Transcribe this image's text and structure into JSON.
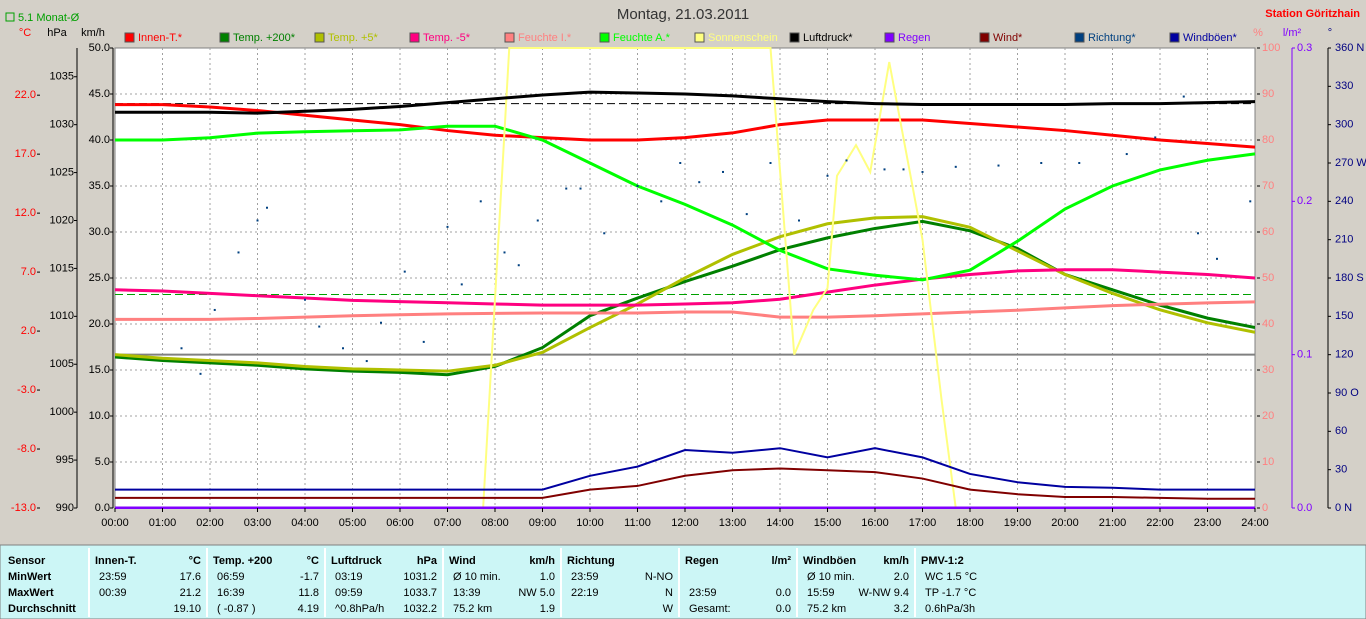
{
  "chart_data": {
    "type": "line",
    "title": "Montag, 21.03.2011",
    "station": "Station Göritzhain",
    "monthly_label": "5.1 Monat-Ø",
    "x": [
      0,
      1,
      2,
      3,
      4,
      5,
      6,
      7,
      8,
      9,
      10,
      11,
      12,
      13,
      14,
      15,
      16,
      17,
      18,
      19,
      20,
      21,
      22,
      23,
      24
    ],
    "xlim": [
      0,
      24
    ],
    "xticks": [
      {
        "value": 0,
        "label": "00:00"
      },
      {
        "value": 1,
        "label": "01:00"
      },
      {
        "value": 2,
        "label": "02:00"
      },
      {
        "value": 3,
        "label": "03:00"
      },
      {
        "value": 4,
        "label": "04:00"
      },
      {
        "value": 5,
        "label": "05:00"
      },
      {
        "value": 6,
        "label": "06:00"
      },
      {
        "value": 7,
        "label": "07:00"
      },
      {
        "value": 8,
        "label": "08:00"
      },
      {
        "value": 9,
        "label": "09:00"
      },
      {
        "value": 10,
        "label": "10:00"
      },
      {
        "value": 11,
        "label": "11:00"
      },
      {
        "value": 12,
        "label": "12:00"
      },
      {
        "value": 13,
        "label": "13:00"
      },
      {
        "value": 14,
        "label": "14:00"
      },
      {
        "value": 15,
        "label": "15:00"
      },
      {
        "value": 16,
        "label": "16:00"
      },
      {
        "value": 17,
        "label": "17:00"
      },
      {
        "value": 18,
        "label": "18:00"
      },
      {
        "value": 19,
        "label": "19:00"
      },
      {
        "value": 20,
        "label": "20:00"
      },
      {
        "value": 21,
        "label": "21:00"
      },
      {
        "value": 22,
        "label": "22:00"
      },
      {
        "value": 23,
        "label": "23:00"
      },
      {
        "value": 24,
        "label": "24:00"
      }
    ],
    "grid": true,
    "axes": [
      {
        "id": "c",
        "unit": "°C",
        "color": "#ff0000",
        "ylim": [
          -13,
          26
        ],
        "yticks": [
          {
            "value": -13,
            "label": "-13.0"
          },
          {
            "value": -8,
            "label": "-8.0"
          },
          {
            "value": -3,
            "label": "-3.0"
          },
          {
            "value": 2,
            "label": "2.0"
          },
          {
            "value": 7,
            "label": "7.0"
          },
          {
            "value": 12,
            "label": "12.0"
          },
          {
            "value": 17,
            "label": "17.0"
          },
          {
            "value": 22,
            "label": "22.0"
          }
        ]
      },
      {
        "id": "hpa",
        "unit": "hPa",
        "color": "#000000",
        "ylim": [
          990,
          1038
        ],
        "yticks": [
          990,
          995,
          1000,
          1005,
          1010,
          1015,
          1020,
          1025,
          1030,
          1035
        ]
      },
      {
        "id": "kmh",
        "unit": "km/h",
        "color": "#000000",
        "ylim": [
          0,
          50
        ],
        "yticks": [
          {
            "value": 0,
            "label": "0.0"
          },
          {
            "value": 5,
            "label": "5.0"
          },
          {
            "value": 10,
            "label": "10.0"
          },
          {
            "value": 15,
            "label": "15.0"
          },
          {
            "value": 20,
            "label": "20.0"
          },
          {
            "value": 25,
            "label": "25.0"
          },
          {
            "value": 30,
            "label": "30.0"
          },
          {
            "value": 35,
            "label": "35.0"
          },
          {
            "value": 40,
            "label": "40.0"
          },
          {
            "value": 45,
            "label": "45.0"
          },
          {
            "value": 50,
            "label": "50.0"
          }
        ]
      },
      {
        "id": "pct",
        "unit": "%",
        "color": "#ff8080",
        "ylim": [
          0,
          100
        ],
        "yticks": [
          0,
          10,
          20,
          30,
          40,
          50,
          60,
          70,
          80,
          90,
          100
        ]
      },
      {
        "id": "rain",
        "unit": "l/m²",
        "color": "#8000ff",
        "ylim": [
          0,
          0.3
        ],
        "yticks": [
          {
            "value": 0,
            "label": "0.0"
          },
          {
            "value": 0.1,
            "label": "0.1"
          },
          {
            "value": 0.2,
            "label": "0.2"
          },
          {
            "value": 0.3,
            "label": "0.3"
          }
        ]
      },
      {
        "id": "deg",
        "unit": "°",
        "color": "#000080",
        "ylim": [
          0,
          360
        ],
        "yticks": [
          {
            "value": 0,
            "label": "0 N"
          },
          30,
          60,
          {
            "value": 90,
            "label": "90 O"
          },
          120,
          150,
          {
            "value": 180,
            "label": "180 S"
          },
          210,
          240,
          {
            "value": 270,
            "label": "270 W"
          },
          300,
          330,
          {
            "value": 360,
            "label": "360 N"
          }
        ]
      }
    ],
    "reference_lines": [
      {
        "axis": "c",
        "value": 5.1,
        "color": "#00a000",
        "dash": true
      },
      {
        "axis": "hpa",
        "value": 1032.2,
        "color": "#000000",
        "dash": true
      },
      {
        "axis": "c",
        "value": 0,
        "color": "#808080",
        "dash": false
      }
    ],
    "series": [
      {
        "name": "Innen-T.*",
        "color": "#ff0000",
        "axis": "c",
        "type": "line",
        "values": [
          21.2,
          21.2,
          21.0,
          20.7,
          20.3,
          19.9,
          19.5,
          19.0,
          18.6,
          18.4,
          18.2,
          18.2,
          18.4,
          18.8,
          19.5,
          19.9,
          19.9,
          19.9,
          19.6,
          19.3,
          19.0,
          18.6,
          18.2,
          17.9,
          17.6
        ]
      },
      {
        "name": "Temp. +200*",
        "color": "#008000",
        "axis": "c",
        "type": "line",
        "values": [
          -0.2,
          -0.5,
          -0.7,
          -0.9,
          -1.2,
          -1.4,
          -1.5,
          -1.7,
          -1.0,
          0.6,
          3.3,
          4.8,
          6.2,
          7.5,
          8.9,
          9.9,
          10.7,
          11.3,
          10.5,
          9.0,
          6.8,
          5.5,
          4.2,
          3.1,
          2.3
        ]
      },
      {
        "name": "Temp. +5*",
        "color": "#b0c000",
        "axis": "c",
        "type": "line",
        "values": [
          0.0,
          -0.3,
          -0.5,
          -0.7,
          -1.0,
          -1.2,
          -1.3,
          -1.4,
          -0.9,
          0.2,
          2.3,
          4.3,
          6.5,
          8.5,
          10.0,
          11.1,
          11.6,
          11.7,
          10.8,
          8.8,
          6.8,
          5.2,
          3.8,
          2.7,
          1.9
        ]
      },
      {
        "name": "Temp. -5*",
        "color": "#ff0080",
        "axis": "c",
        "type": "line",
        "values": [
          5.5,
          5.4,
          5.2,
          5.0,
          4.8,
          4.6,
          4.5,
          4.4,
          4.3,
          4.2,
          4.2,
          4.2,
          4.3,
          4.4,
          4.7,
          5.3,
          5.9,
          6.4,
          6.8,
          7.1,
          7.2,
          7.2,
          7.0,
          6.8,
          6.5
        ]
      },
      {
        "name": "Feuchte I.*",
        "color": "#ff8080",
        "axis": "pct",
        "type": "line",
        "values": [
          41,
          41,
          41,
          41.2,
          41.5,
          41.8,
          42,
          42.2,
          42.3,
          42.4,
          42.4,
          42.4,
          42.6,
          42.6,
          41.5,
          41.5,
          41.8,
          42.2,
          42.6,
          43,
          43.5,
          44,
          44.3,
          44.6,
          44.8
        ]
      },
      {
        "name": "Feuchte A.*",
        "color": "#00ff00",
        "axis": "pct",
        "type": "line",
        "values": [
          80,
          80,
          80.5,
          81.5,
          81.8,
          82,
          82.2,
          83,
          83,
          80,
          75,
          70,
          66,
          61.5,
          56,
          52,
          50.6,
          49.6,
          51.7,
          58,
          65,
          70,
          73.5,
          75.6,
          77
        ]
      },
      {
        "name": "Sonnenschein",
        "color": "#ffff80",
        "axis": "deg",
        "type": "line",
        "x": [
          0,
          7.75,
          8.3,
          13.8,
          14.3,
          14.7,
          15.0,
          15.2,
          15.6,
          15.9,
          16.3,
          17.0,
          17.4,
          17.7,
          24
        ],
        "values": [
          0,
          0,
          360,
          360,
          120,
          155,
          172,
          260,
          284,
          263,
          349,
          210,
          85,
          0,
          0
        ]
      },
      {
        "name": "Luftdruck*",
        "color": "#000000",
        "axis": "hpa",
        "type": "line",
        "values": [
          1031.3,
          1031.3,
          1031.3,
          1031.2,
          1031.4,
          1031.6,
          1031.9,
          1032.3,
          1032.7,
          1033.1,
          1033.4,
          1033.3,
          1033.2,
          1033.0,
          1032.7,
          1032.4,
          1032.2,
          1032.1,
          1032.1,
          1032.1,
          1032.1,
          1032.2,
          1032.2,
          1032.3,
          1032.4
        ]
      },
      {
        "name": "Regen",
        "color": "#8000ff",
        "axis": "rain",
        "type": "line",
        "values": [
          0,
          0,
          0,
          0,
          0,
          0,
          0,
          0,
          0,
          0,
          0,
          0,
          0,
          0,
          0,
          0,
          0,
          0,
          0,
          0,
          0,
          0,
          0,
          0,
          0
        ]
      },
      {
        "name": "Wind*",
        "color": "#800000",
        "axis": "kmh",
        "type": "line",
        "values": [
          1.1,
          1.1,
          1.1,
          1.1,
          1.1,
          1.1,
          1.1,
          1.1,
          1.1,
          1.1,
          2.0,
          2.4,
          3.5,
          4.1,
          4.3,
          4.1,
          3.9,
          3.2,
          2.0,
          1.5,
          1.2,
          1.2,
          1.1,
          1.0,
          1.0
        ]
      },
      {
        "name": "Richtung*",
        "color": "#004080",
        "axis": "deg",
        "type": "scatter",
        "x": [
          1.4,
          1.8,
          2.1,
          2.6,
          3.0,
          3.2,
          4.0,
          4.3,
          4.8,
          5.3,
          5.6,
          6.1,
          6.5,
          7.0,
          7.3,
          7.7,
          8.2,
          8.5,
          8.9,
          9.5,
          9.8,
          10.3,
          11.0,
          11.5,
          11.9,
          12.3,
          12.8,
          13.3,
          13.8,
          14.4,
          15.0,
          15.4,
          16.2,
          16.6,
          17.0,
          17.7,
          18.6,
          19.5,
          20.3,
          21.3,
          21.9,
          22.5,
          22.8,
          23.2,
          23.9
        ],
        "values": [
          125,
          105,
          155,
          200,
          225,
          235,
          163,
          142,
          125,
          115,
          145,
          185,
          130,
          220,
          175,
          240,
          200,
          190,
          225,
          250,
          250,
          215,
          252,
          240,
          270,
          255,
          263,
          230,
          270,
          225,
          260,
          272,
          265,
          265,
          263,
          267,
          268,
          270,
          270,
          277,
          290,
          322,
          215,
          195,
          240
        ]
      },
      {
        "name": "Windböen*",
        "color": "#0000a0",
        "axis": "kmh",
        "type": "line",
        "values": [
          2.0,
          2.0,
          2.0,
          2.0,
          2.0,
          2.0,
          2.0,
          2.0,
          2.0,
          2.0,
          3.5,
          4.5,
          6.3,
          6.0,
          6.5,
          5.5,
          6.5,
          5.5,
          3.7,
          2.8,
          2.3,
          2.2,
          2.0,
          2.0,
          2.0
        ]
      }
    ]
  },
  "table": {
    "sensor_column": [
      "Sensor",
      "MinWert",
      "MaxWert",
      "Durchschnitt"
    ],
    "groups": [
      {
        "name": "Innen-T.",
        "unit": "°C",
        "rows": [
          {
            "left": "23:59",
            "right": "17.6"
          },
          {
            "left": "00:39",
            "right": "21.2"
          },
          {
            "right": "19.10"
          }
        ]
      },
      {
        "name": "Temp. +200",
        "unit": "°C",
        "rows": [
          {
            "left": "06:59",
            "right": "-1.7"
          },
          {
            "left": "16:39",
            "right": "11.8"
          },
          {
            "left": "( -0.87 )",
            "right": "4.19"
          }
        ]
      },
      {
        "name": "Luftdruck",
        "unit": "hPa",
        "rows": [
          {
            "left": "03:19",
            "right": "1031.2"
          },
          {
            "left": "09:59",
            "right": "1033.7"
          },
          {
            "left": "^0.8hPa/h",
            "right": "1032.2"
          }
        ]
      },
      {
        "name": "Wind",
        "unit": "km/h",
        "rows": [
          {
            "left": "Ø 10 min.",
            "right": "1.0"
          },
          {
            "left": "13:39",
            "right": "NW 5.0"
          },
          {
            "left": "75.2 km",
            "right": "1.9"
          }
        ]
      },
      {
        "name": "Richtung",
        "rows": [
          {
            "left": "23:59",
            "right": "N-NO"
          },
          {
            "left": "22:19",
            "right": "N"
          },
          {
            "right": "W"
          }
        ]
      },
      {
        "name": "Regen",
        "unit": "l/m²",
        "rows": [
          {},
          {
            "left": "23:59",
            "right": "0.0"
          },
          {
            "left": "Gesamt:",
            "right": "0.0"
          }
        ]
      },
      {
        "name": "Windböen",
        "unit": "km/h",
        "rows": [
          {
            "left": "Ø 10 min.",
            "right": "2.0"
          },
          {
            "left": "15:59",
            "right": "W-NW 9.4"
          },
          {
            "left": "75.2 km",
            "right": "3.2"
          }
        ]
      },
      {
        "name": "PMV-1:2",
        "rows": [
          {
            "left": "WC 1.5 °C"
          },
          {
            "left": "TP -1.7 °C"
          },
          {
            "left": "0.6hPa/3h"
          }
        ]
      }
    ]
  }
}
